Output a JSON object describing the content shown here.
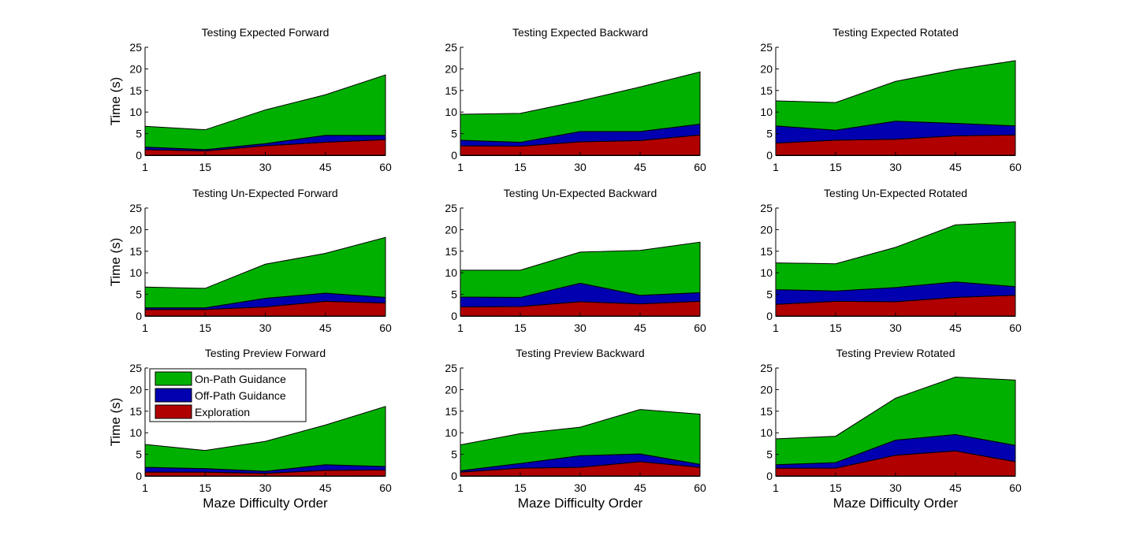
{
  "chart_data": [
    {
      "type": "area",
      "stacked": true,
      "title": "Testing Expected Forward",
      "xlabel": "",
      "ylabel": "Time (s)",
      "categories": [
        "1",
        "15",
        "30",
        "45",
        "60"
      ],
      "ylim": [
        0,
        25
      ],
      "yticks": [
        0,
        5,
        10,
        15,
        20,
        25
      ],
      "grid": false,
      "series": [
        {
          "name": "Exploration",
          "values": [
            1.3,
            1.0,
            2.2,
            3.0,
            3.6
          ]
        },
        {
          "name": "Off-Path Guidance",
          "values": [
            0.6,
            0.3,
            0.5,
            1.6,
            1.0
          ]
        },
        {
          "name": "On-Path Guidance",
          "values": [
            4.8,
            4.6,
            7.8,
            9.4,
            14.0
          ]
        }
      ]
    },
    {
      "type": "area",
      "stacked": true,
      "title": "Testing Expected Backward",
      "xlabel": "",
      "ylabel": "",
      "categories": [
        "1",
        "15",
        "30",
        "45",
        "60"
      ],
      "ylim": [
        0,
        25
      ],
      "yticks": [
        0,
        5,
        10,
        15,
        20,
        25
      ],
      "grid": false,
      "series": [
        {
          "name": "Exploration",
          "values": [
            2.2,
            2.1,
            3.1,
            3.4,
            4.7
          ]
        },
        {
          "name": "Off-Path Guidance",
          "values": [
            1.3,
            0.9,
            2.4,
            2.1,
            2.5
          ]
        },
        {
          "name": "On-Path Guidance",
          "values": [
            6.0,
            6.7,
            7.1,
            10.3,
            12.1
          ]
        }
      ]
    },
    {
      "type": "area",
      "stacked": true,
      "title": "Testing Expected Rotated",
      "xlabel": "",
      "ylabel": "",
      "categories": [
        "1",
        "15",
        "30",
        "45",
        "60"
      ],
      "ylim": [
        0,
        25
      ],
      "yticks": [
        0,
        5,
        10,
        15,
        20,
        25
      ],
      "grid": false,
      "series": [
        {
          "name": "Exploration",
          "values": [
            2.8,
            3.5,
            3.7,
            4.5,
            4.7
          ]
        },
        {
          "name": "Off-Path Guidance",
          "values": [
            4.0,
            2.3,
            4.2,
            2.9,
            2.1
          ]
        },
        {
          "name": "On-Path Guidance",
          "values": [
            5.8,
            6.4,
            9.2,
            12.4,
            15.1
          ]
        }
      ]
    },
    {
      "type": "area",
      "stacked": true,
      "title": "Testing Un-Expected Forward",
      "xlabel": "",
      "ylabel": "Time (s)",
      "categories": [
        "1",
        "15",
        "30",
        "45",
        "60"
      ],
      "ylim": [
        0,
        25
      ],
      "yticks": [
        0,
        5,
        10,
        15,
        20,
        25
      ],
      "grid": false,
      "series": [
        {
          "name": "Exploration",
          "values": [
            1.5,
            1.5,
            2.1,
            3.4,
            3.0
          ]
        },
        {
          "name": "Off-Path Guidance",
          "values": [
            0.4,
            0.4,
            2.0,
            1.9,
            1.3
          ]
        },
        {
          "name": "On-Path Guidance",
          "values": [
            4.8,
            4.5,
            7.9,
            9.2,
            13.9
          ]
        }
      ]
    },
    {
      "type": "area",
      "stacked": true,
      "title": "Testing Un-Expected Backward",
      "xlabel": "",
      "ylabel": "",
      "categories": [
        "1",
        "15",
        "30",
        "45",
        "60"
      ],
      "ylim": [
        0,
        25
      ],
      "yticks": [
        0,
        5,
        10,
        15,
        20,
        25
      ],
      "grid": false,
      "series": [
        {
          "name": "Exploration",
          "values": [
            2.1,
            2.2,
            3.3,
            2.8,
            3.4
          ]
        },
        {
          "name": "Off-Path Guidance",
          "values": [
            2.3,
            2.1,
            4.3,
            2.0,
            2.0
          ]
        },
        {
          "name": "On-Path Guidance",
          "values": [
            6.2,
            6.3,
            7.2,
            10.4,
            11.7
          ]
        }
      ]
    },
    {
      "type": "area",
      "stacked": true,
      "title": "Testing Un-Expected Rotated",
      "xlabel": "",
      "ylabel": "",
      "categories": [
        "1",
        "15",
        "30",
        "45",
        "60"
      ],
      "ylim": [
        0,
        25
      ],
      "yticks": [
        0,
        5,
        10,
        15,
        20,
        25
      ],
      "grid": false,
      "series": [
        {
          "name": "Exploration",
          "values": [
            2.7,
            3.4,
            3.3,
            4.3,
            4.8
          ]
        },
        {
          "name": "Off-Path Guidance",
          "values": [
            3.4,
            2.4,
            3.3,
            3.6,
            2.0
          ]
        },
        {
          "name": "On-Path Guidance",
          "values": [
            6.2,
            6.3,
            9.3,
            13.2,
            15.0
          ]
        }
      ]
    },
    {
      "type": "area",
      "stacked": true,
      "title": "Testing Preview Forward",
      "xlabel": "Maze Difficulty Order",
      "ylabel": "Time (s)",
      "categories": [
        "1",
        "15",
        "30",
        "45",
        "60"
      ],
      "ylim": [
        0,
        25
      ],
      "yticks": [
        0,
        5,
        10,
        15,
        20,
        25
      ],
      "grid": false,
      "legend": "top-left",
      "series": [
        {
          "name": "Exploration",
          "values": [
            0.9,
            0.9,
            0.6,
            1.3,
            1.4
          ]
        },
        {
          "name": "Off-Path Guidance",
          "values": [
            1.1,
            0.8,
            0.5,
            1.3,
            0.8
          ]
        },
        {
          "name": "On-Path Guidance",
          "values": [
            5.3,
            4.2,
            6.9,
            9.2,
            13.9
          ]
        }
      ]
    },
    {
      "type": "area",
      "stacked": true,
      "title": "Testing Preview Backward",
      "xlabel": "Maze Difficulty Order",
      "ylabel": "",
      "categories": [
        "1",
        "15",
        "30",
        "45",
        "60"
      ],
      "ylim": [
        0,
        25
      ],
      "yticks": [
        0,
        5,
        10,
        15,
        20,
        25
      ],
      "grid": false,
      "series": [
        {
          "name": "Exploration",
          "values": [
            0.9,
            1.8,
            2.0,
            3.3,
            2.0
          ]
        },
        {
          "name": "Off-Path Guidance",
          "values": [
            0.3,
            1.1,
            2.7,
            1.8,
            0.7
          ]
        },
        {
          "name": "On-Path Guidance",
          "values": [
            6.0,
            6.9,
            6.6,
            10.3,
            11.6
          ]
        }
      ]
    },
    {
      "type": "area",
      "stacked": true,
      "title": "Testing Preview Rotated",
      "xlabel": "Maze Difficulty Order",
      "ylabel": "",
      "categories": [
        "1",
        "15",
        "30",
        "45",
        "60"
      ],
      "ylim": [
        0,
        25
      ],
      "yticks": [
        0,
        5,
        10,
        15,
        20,
        25
      ],
      "grid": false,
      "series": [
        {
          "name": "Exploration",
          "values": [
            1.8,
            1.8,
            4.8,
            5.8,
            3.3
          ]
        },
        {
          "name": "Off-Path Guidance",
          "values": [
            0.8,
            1.3,
            3.5,
            3.8,
            3.8
          ]
        },
        {
          "name": "On-Path Guidance",
          "values": [
            6.0,
            6.1,
            9.7,
            13.3,
            15.1
          ]
        }
      ]
    }
  ],
  "legend": {
    "items": [
      {
        "label": "On-Path Guidance",
        "color": "#00b000"
      },
      {
        "label": "Off-Path Guidance",
        "color": "#0000b0"
      },
      {
        "label": "Exploration",
        "color": "#b00000"
      }
    ]
  },
  "colors": {
    "Exploration": "#b00000",
    "Off-Path Guidance": "#0000b0",
    "On-Path Guidance": "#00b000"
  }
}
